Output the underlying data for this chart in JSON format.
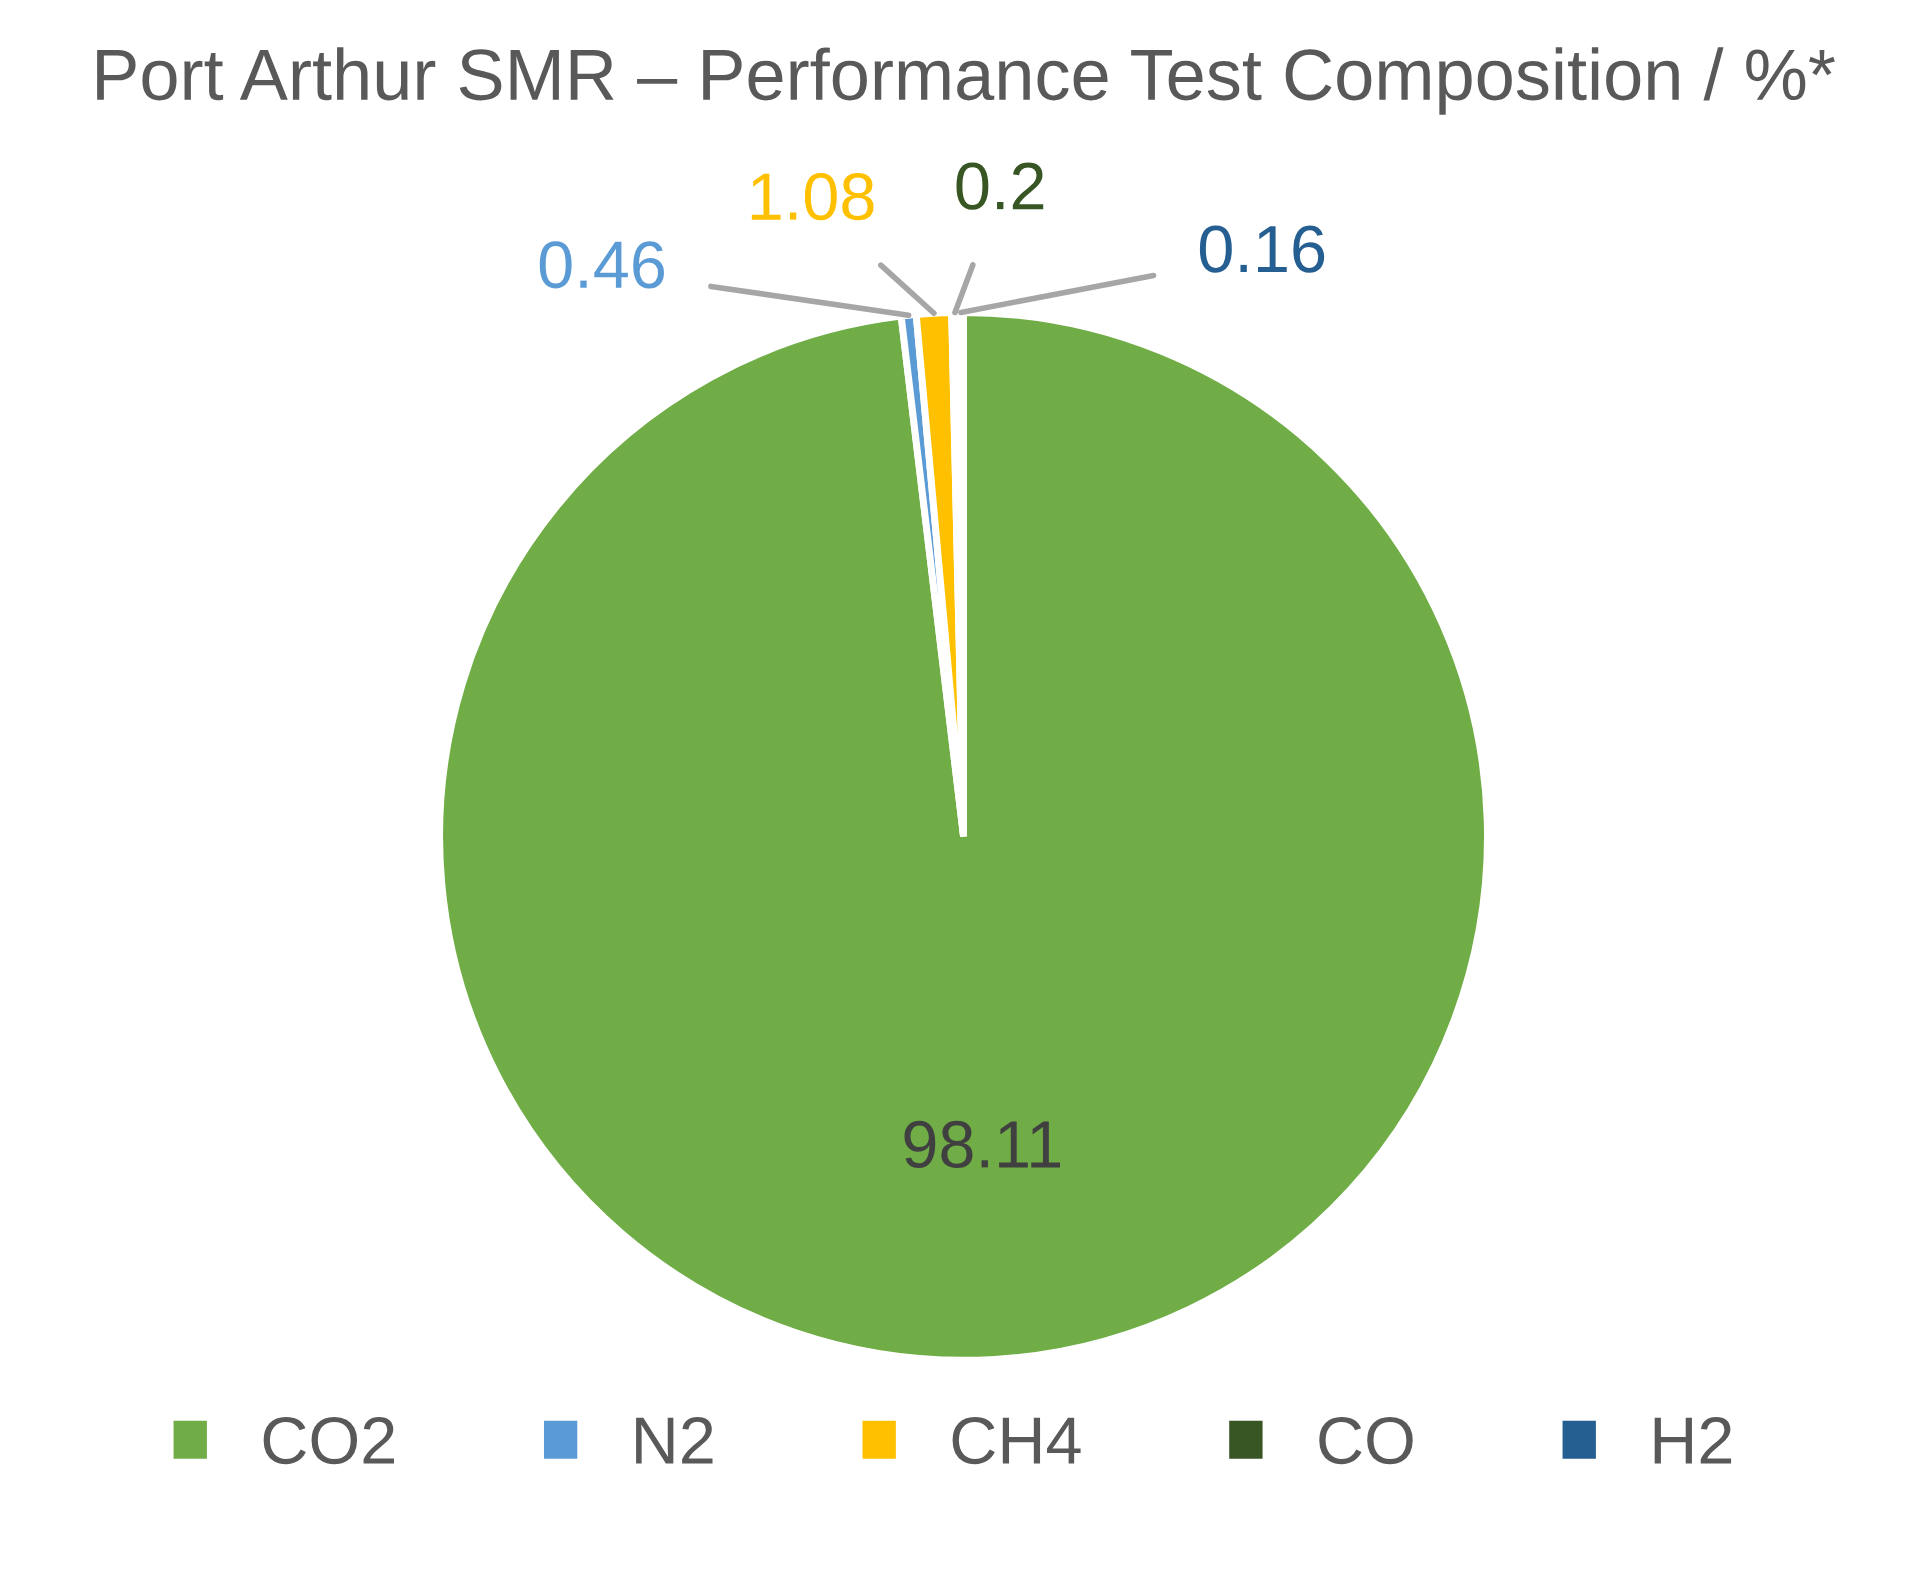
{
  "chart_data": {
    "type": "pie",
    "title": "Port Arthur SMR – Performance Test Composition / %*",
    "categories": [
      "CO2",
      "N2",
      "CH4",
      "CO",
      "H2"
    ],
    "values": [
      98.11,
      0.46,
      1.08,
      0.2,
      0.16
    ],
    "colors": [
      "#70ad47",
      "#5b9bd5",
      "#ffc000",
      "#375623",
      "#255e91"
    ],
    "data_labels": true,
    "legend": "bottom"
  }
}
